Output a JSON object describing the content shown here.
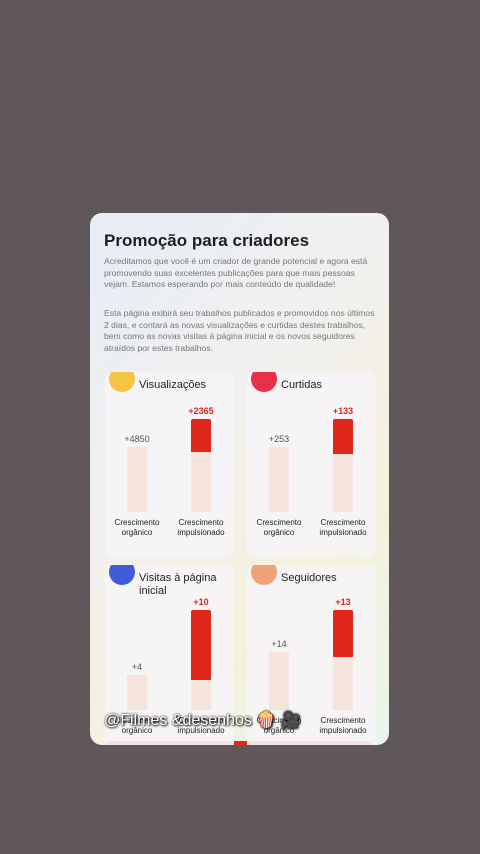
{
  "header": {
    "title": "Promoção para criadores"
  },
  "paragraphs": [
    "Acreditamos que você é um criador de grande potencial e agora está promovendo suas excelentes publicações para que mais pessoas vejam. Estamos esperando por mais conteúdo de qualidade!",
    "Esta página exibirá seu trabalhos publicados e promovidos nos últimos 2 dias, e contará as novas visualizações e curtidas destes trabalhos, bem como as novas visitas à página inicial e os novos seguidores atraídos por estes trabalhos."
  ],
  "cards": [
    {
      "title": "Visualizações",
      "organic": "+4850",
      "boosted": "+2365",
      "organic_label": "Crescimento orgânico",
      "boosted_label": "Crescimento impulsionado"
    },
    {
      "title": "Curtidas",
      "organic": "+253",
      "boosted": "+133",
      "organic_label": "Crescimento orgânico",
      "boosted_label": "Crescimento impulsionado"
    },
    {
      "title": "Visitas à página inicial",
      "organic": "+4",
      "boosted": "+10",
      "organic_label": "Crescimento orgânico",
      "boosted_label": "Crescimento impulsionado"
    },
    {
      "title": "Seguidores",
      "organic": "+14",
      "boosted": "+13",
      "organic_label": "Crescimento orgânico",
      "boosted_label": "Crescimento impulsionado"
    }
  ],
  "watermark": "@Filmes &desenhos 🍿 🎥"
}
